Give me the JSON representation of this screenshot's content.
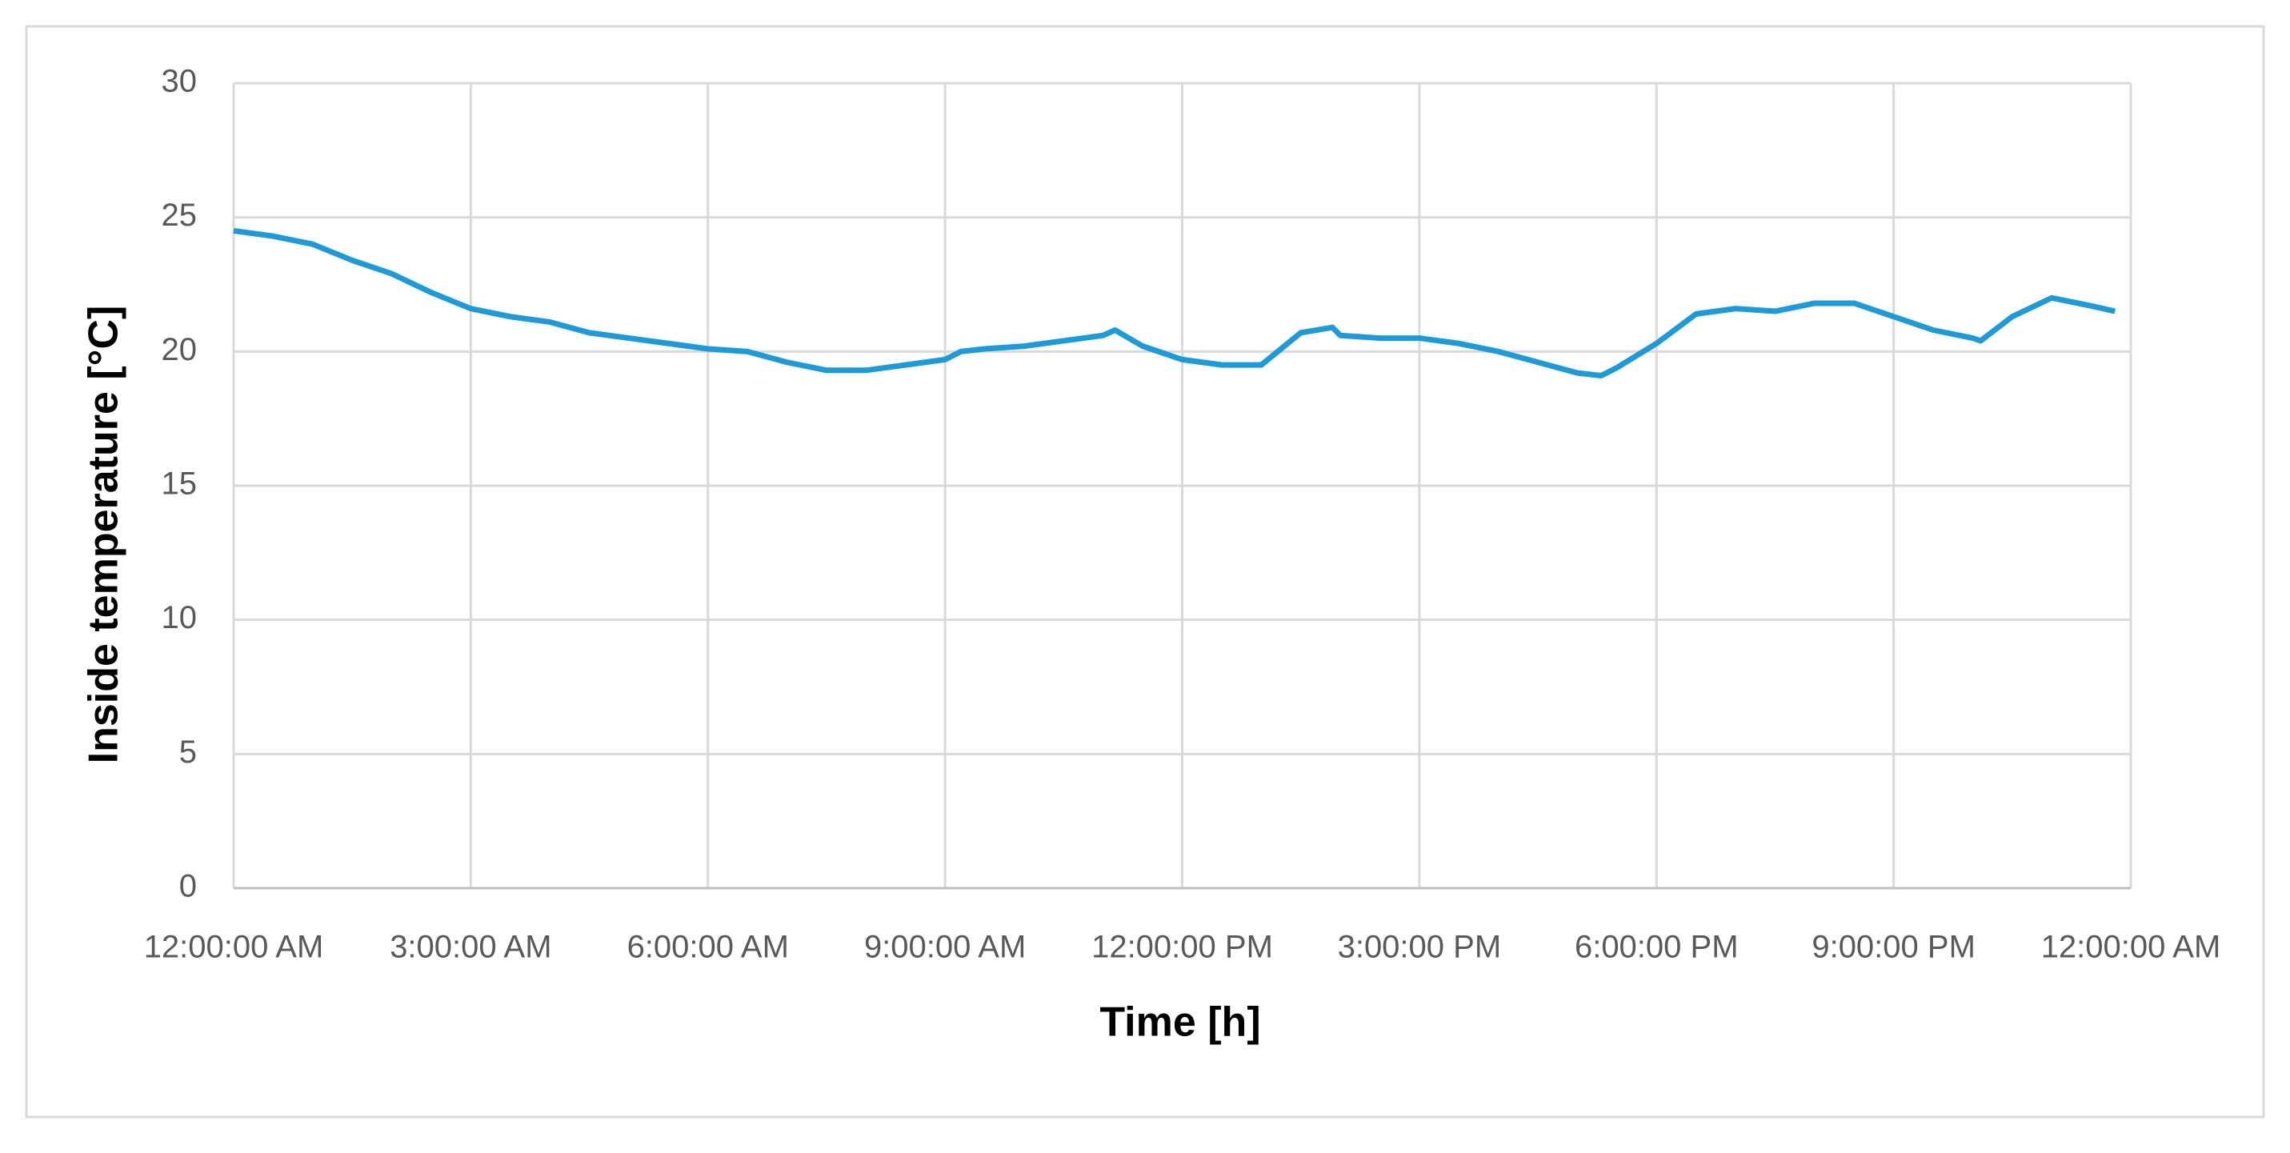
{
  "chart_data": {
    "type": "line",
    "x_label": "Time [h]",
    "y_label": "Inside temperature [°C]",
    "x": [
      0,
      0.5,
      1,
      1.5,
      2,
      2.5,
      3,
      3.5,
      4,
      4.5,
      5,
      5.5,
      6,
      6.5,
      7,
      7.5,
      8,
      8.5,
      9,
      9.2,
      9.5,
      10,
      10.5,
      11,
      11.15,
      11.5,
      12,
      12.5,
      13,
      13.5,
      13.9,
      14,
      14.5,
      15,
      15.5,
      16,
      16.5,
      17,
      17.3,
      17.5,
      18,
      18.5,
      19,
      19.5,
      20,
      20.5,
      21,
      21.5,
      22,
      22.1,
      22.5,
      23,
      23.5,
      23.8
    ],
    "series": [
      {
        "name": "Inside temperature",
        "color": "#1f9ad6",
        "values": [
          24.5,
          24.3,
          24.0,
          23.4,
          22.9,
          22.2,
          21.6,
          21.3,
          21.1,
          20.7,
          20.5,
          20.3,
          20.1,
          20.0,
          19.6,
          19.3,
          19.3,
          19.5,
          19.7,
          20.0,
          20.1,
          20.2,
          20.4,
          20.6,
          20.8,
          20.2,
          19.7,
          19.5,
          19.5,
          20.7,
          20.9,
          20.6,
          20.5,
          20.5,
          20.3,
          20.0,
          19.6,
          19.2,
          19.1,
          19.4,
          20.3,
          21.4,
          21.6,
          21.5,
          21.8,
          21.8,
          21.3,
          20.8,
          20.5,
          20.4,
          21.3,
          22.0,
          21.7,
          21.5
        ]
      }
    ],
    "xlim": [
      0,
      24
    ],
    "xticks": [
      {
        "value": 0,
        "label": "12:00:00 AM"
      },
      {
        "value": 3,
        "label": "3:00:00 AM"
      },
      {
        "value": 6,
        "label": "6:00:00 AM"
      },
      {
        "value": 9,
        "label": "9:00:00 AM"
      },
      {
        "value": 12,
        "label": "12:00:00 PM"
      },
      {
        "value": 15,
        "label": "3:00:00 PM"
      },
      {
        "value": 18,
        "label": "6:00:00 PM"
      },
      {
        "value": 21,
        "label": "9:00:00 PM"
      },
      {
        "value": 24,
        "label": "12:00:00 AM"
      }
    ],
    "ylim": [
      0,
      30
    ],
    "yticks": [
      0,
      5,
      10,
      15,
      20,
      25,
      30
    ],
    "grid": true
  }
}
